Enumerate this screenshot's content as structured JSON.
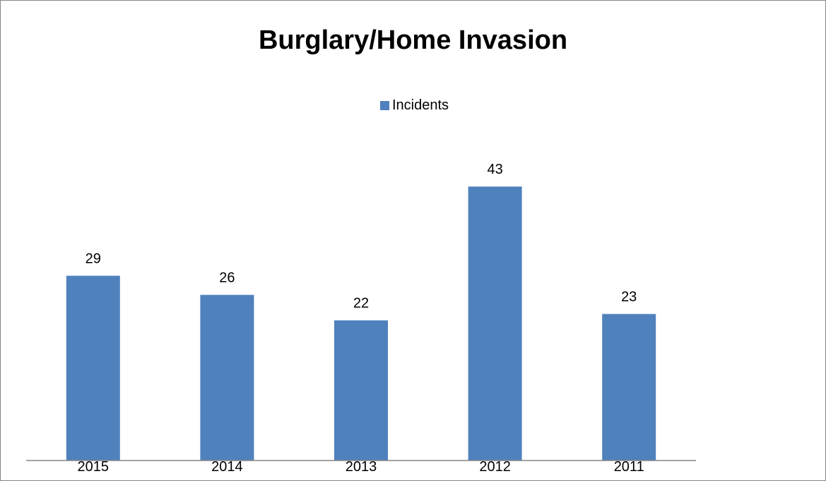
{
  "chart_data": {
    "type": "bar",
    "title": "Burglary/Home Invasion",
    "xlabel": "",
    "ylabel": "",
    "categories": [
      "2015",
      "2014",
      "2013",
      "2012",
      "2011"
    ],
    "series": [
      {
        "name": "Incidents",
        "values": [
          29,
          26,
          22,
          43,
          23
        ],
        "color": "#4F81BD"
      }
    ],
    "ylim": [
      0,
      50
    ],
    "data_labels": true,
    "gridlines": false,
    "legend_position": "top-center"
  }
}
